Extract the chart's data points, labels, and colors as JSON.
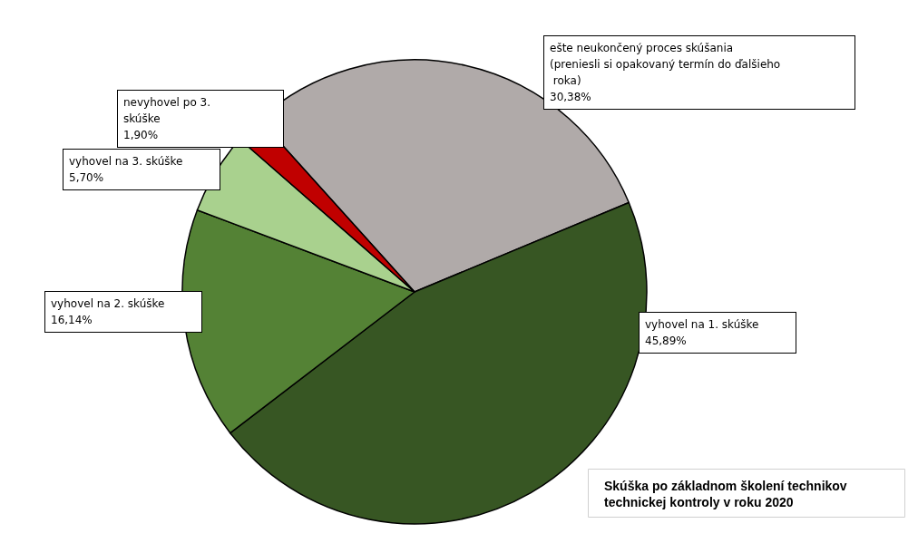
{
  "chart_data": {
    "type": "pie",
    "title": "Skúška po základnom školení technikov technickej kontroly v roku 2020",
    "categories": [
      "ešte neukončený proces skúšania  (preniesli si opakovaný termín do ďalšieho roka)",
      "vyhovel na 1. skúške",
      "vyhovel na 2. skúške",
      "vyhovel na 3. skúške",
      "nevyhovel po 3. skúške"
    ],
    "values": [
      30.38,
      45.89,
      16.14,
      5.7,
      1.9
    ],
    "value_labels": [
      "30,38%",
      "45,89%",
      "16,14%",
      "5,70%",
      "1,90%"
    ],
    "colors": [
      "#b0aaa9",
      "#375623",
      "#548235",
      "#a9d18e",
      "#c00000"
    ],
    "legend": false
  }
}
